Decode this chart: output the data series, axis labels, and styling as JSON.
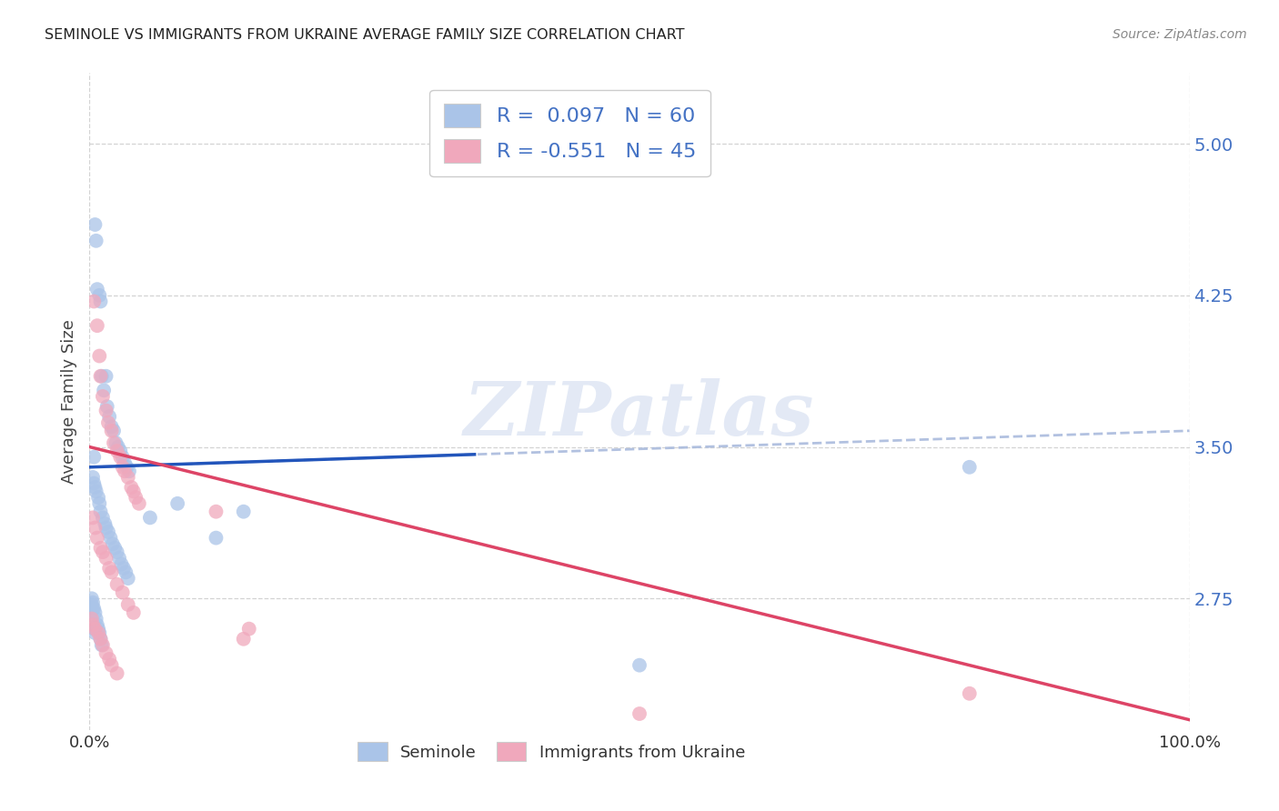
{
  "title": "SEMINOLE VS IMMIGRANTS FROM UKRAINE AVERAGE FAMILY SIZE CORRELATION CHART",
  "source": "Source: ZipAtlas.com",
  "ylabel": "Average Family Size",
  "ytick_labels": [
    "2.75",
    "3.50",
    "4.25",
    "5.00"
  ],
  "ytick_values": [
    2.75,
    3.5,
    4.25,
    5.0
  ],
  "ytick_color": "#4472c4",
  "grid_color": "#c8c8c8",
  "background_color": "#ffffff",
  "watermark_text": "ZIPatlas",
  "seminole_color": "#aac4e8",
  "ukraine_color": "#f0a8bc",
  "trend_seminole_solid_color": "#2255bb",
  "trend_ukraine_color": "#dd4466",
  "trend_seminole_dashed_color": "#aabbdd",
  "xlim": [
    0,
    100
  ],
  "ylim": [
    2.1,
    5.35
  ],
  "figsize": [
    14.06,
    8.92
  ],
  "dpi": 100,
  "legend1_text": "R =  0.097   N = 60",
  "legend2_text": "R = -0.551   N = 45",
  "bottom_legend1": "Seminole",
  "bottom_legend2": "Immigrants from Ukraine",
  "seminole_x": [
    0.4,
    0.5,
    0.6,
    0.7,
    0.9,
    1.0,
    1.1,
    1.3,
    1.5,
    1.6,
    1.8,
    2.0,
    2.2,
    2.4,
    2.6,
    2.8,
    3.0,
    3.2,
    3.4,
    3.6,
    0.3,
    0.4,
    0.5,
    0.6,
    0.8,
    0.9,
    1.0,
    1.2,
    1.4,
    1.5,
    1.7,
    1.9,
    2.1,
    2.3,
    2.5,
    2.7,
    2.9,
    3.1,
    3.3,
    3.5,
    0.2,
    0.3,
    0.4,
    0.5,
    0.6,
    0.7,
    0.8,
    0.9,
    1.0,
    1.1,
    5.5,
    8.0,
    11.5,
    14.0,
    0.2,
    0.3,
    0.4,
    0.5,
    50.0,
    80.0
  ],
  "seminole_y": [
    3.45,
    4.6,
    4.52,
    4.28,
    4.25,
    4.22,
    3.85,
    3.78,
    3.85,
    3.7,
    3.65,
    3.6,
    3.58,
    3.52,
    3.5,
    3.48,
    3.45,
    3.42,
    3.4,
    3.38,
    3.35,
    3.32,
    3.3,
    3.28,
    3.25,
    3.22,
    3.18,
    3.15,
    3.12,
    3.1,
    3.08,
    3.05,
    3.02,
    3.0,
    2.98,
    2.95,
    2.92,
    2.9,
    2.88,
    2.85,
    2.75,
    2.73,
    2.7,
    2.68,
    2.65,
    2.62,
    2.6,
    2.58,
    2.55,
    2.52,
    3.15,
    3.22,
    3.05,
    3.18,
    2.72,
    2.7,
    2.6,
    2.58,
    2.42,
    3.4
  ],
  "ukraine_x": [
    0.4,
    0.7,
    0.9,
    1.0,
    1.2,
    1.5,
    1.7,
    2.0,
    2.2,
    2.5,
    2.8,
    3.0,
    3.2,
    3.5,
    3.8,
    4.0,
    4.2,
    4.5,
    0.3,
    0.5,
    0.7,
    1.0,
    1.2,
    1.5,
    1.8,
    2.0,
    2.5,
    3.0,
    3.5,
    4.0,
    0.2,
    0.3,
    0.5,
    0.8,
    1.0,
    1.2,
    1.5,
    1.8,
    2.0,
    2.5,
    11.5,
    50.0,
    80.0,
    14.0,
    14.5
  ],
  "ukraine_y": [
    4.22,
    4.1,
    3.95,
    3.85,
    3.75,
    3.68,
    3.62,
    3.58,
    3.52,
    3.48,
    3.45,
    3.4,
    3.38,
    3.35,
    3.3,
    3.28,
    3.25,
    3.22,
    3.15,
    3.1,
    3.05,
    3.0,
    2.98,
    2.95,
    2.9,
    2.88,
    2.82,
    2.78,
    2.72,
    2.68,
    2.65,
    2.62,
    2.6,
    2.58,
    2.55,
    2.52,
    2.48,
    2.45,
    2.42,
    2.38,
    3.18,
    2.18,
    2.28,
    2.55,
    2.6
  ],
  "trend_sem_x0": 0,
  "trend_sem_y0": 3.4,
  "trend_sem_x1": 100,
  "trend_sem_y1": 3.58,
  "trend_sem_dash_x0": 0,
  "trend_sem_dash_y0": 3.4,
  "trend_sem_dash_x1": 100,
  "trend_sem_dash_y1": 3.58,
  "trend_ukr_x0": 0,
  "trend_ukr_y0": 3.5,
  "trend_ukr_x1": 100,
  "trend_ukr_y1": 2.15
}
